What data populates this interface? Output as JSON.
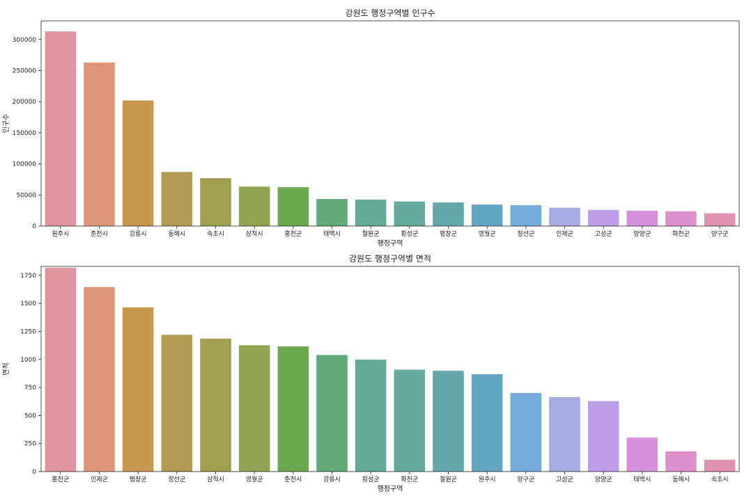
{
  "chart_data": [
    {
      "type": "bar",
      "title": "강원도 행정구역별 인구수",
      "xlabel": "행정구역",
      "ylabel": "인구수",
      "ylim": [
        0,
        330000
      ],
      "yticks": [
        0,
        50000,
        100000,
        150000,
        200000,
        250000,
        300000
      ],
      "grid": false,
      "categories": [
        "원주시",
        "춘천시",
        "강릉시",
        "동해시",
        "속초시",
        "삼척시",
        "홍천군",
        "태백시",
        "철원군",
        "횡성군",
        "평창군",
        "영월군",
        "정선군",
        "인제군",
        "고성군",
        "양양군",
        "화천군",
        "양구군"
      ],
      "values": [
        313000,
        263000,
        202000,
        87000,
        77000,
        63500,
        62500,
        43500,
        42500,
        39500,
        38000,
        34500,
        33500,
        29500,
        26000,
        24800,
        23800,
        20500
      ]
    },
    {
      "type": "bar",
      "title": "강원도 행정구역별 면적",
      "xlabel": "행정구역",
      "ylabel": "면적",
      "ylim": [
        0,
        1830
      ],
      "yticks": [
        0,
        250,
        500,
        750,
        1000,
        1250,
        1500,
        1750
      ],
      "grid": false,
      "categories": [
        "홍천군",
        "인제군",
        "평창군",
        "정선군",
        "삼척시",
        "영월군",
        "춘천시",
        "강릉시",
        "횡성군",
        "화천군",
        "철원군",
        "원주시",
        "양구군",
        "고성군",
        "양양군",
        "태백시",
        "동해시",
        "속초시"
      ],
      "values": [
        1818,
        1646,
        1464,
        1220,
        1186,
        1127,
        1116,
        1040,
        998,
        909,
        899,
        868,
        701,
        664,
        629,
        303,
        180,
        105
      ]
    }
  ],
  "palette": [
    "#e1969f",
    "#dd967a",
    "#c7984e",
    "#b19c52",
    "#a09e4f",
    "#8fa551",
    "#6ca84e",
    "#62ab78",
    "#62aa95",
    "#63aa9f",
    "#63a8ac",
    "#62a6c4",
    "#74aadc",
    "#a6abe1",
    "#bc9de6",
    "#d691de",
    "#df8fcc",
    "#df93b1"
  ]
}
